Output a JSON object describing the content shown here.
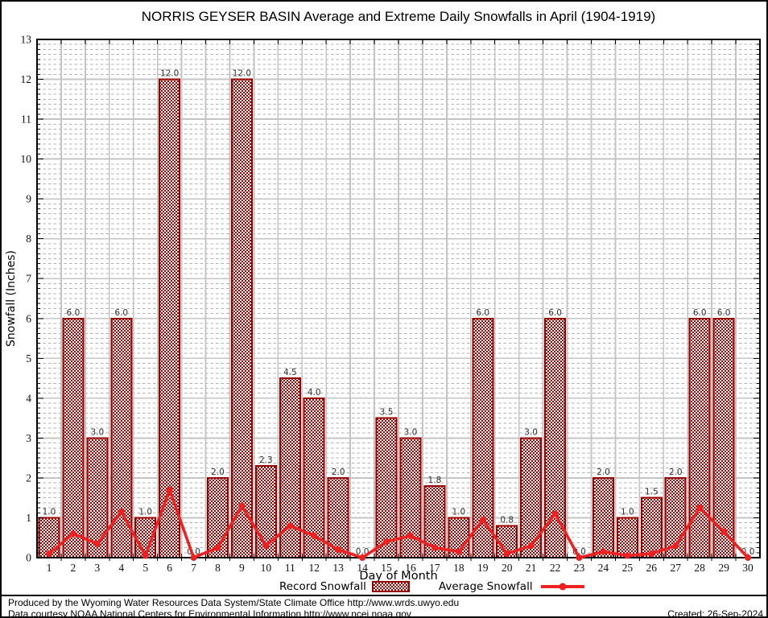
{
  "title": "NORRIS GEYSER BASIN Average and Extreme Daily Snowfalls in April (1904-1919)",
  "axes": {
    "x_title": "Day of Month",
    "y_title": "Snowfall (Inches)",
    "y_ticks": [
      0,
      1,
      2,
      3,
      4,
      5,
      6,
      7,
      8,
      9,
      10,
      11,
      12,
      13
    ]
  },
  "legend": {
    "record_label": "Record Snowfall",
    "average_label": "Average Snowfall"
  },
  "footer": {
    "line1": "Produced by the Wyoming Water Resources Data System/State Climate Office http://www.wrds.uwyo.edu",
    "line2": "Data courtesy NOAA National Centers for Environmental Information http://www.ncei.noaa.gov",
    "created": "Created: 26-Sep-2024"
  },
  "colors": {
    "bar_border": "#990000",
    "bar_fill": "#990000",
    "line": "#ee2020",
    "grid_major": "#c4c4c4",
    "grid_minor": "#b0b0b0",
    "value_label": "#333333",
    "tick_label": "#111111",
    "axis": "#000000"
  },
  "chart_data": {
    "type": "bar",
    "title": "NORRIS GEYSER BASIN Average and Extreme Daily Snowfalls in April (1904-1919)",
    "xlabel": "Day of Month",
    "ylabel": "Snowfall (Inches)",
    "ylim": [
      0,
      13
    ],
    "grid": true,
    "legend_position": "bottom",
    "x": [
      1,
      2,
      3,
      4,
      5,
      6,
      7,
      8,
      9,
      10,
      11,
      12,
      13,
      14,
      15,
      16,
      17,
      18,
      19,
      20,
      21,
      22,
      23,
      24,
      25,
      26,
      27,
      28,
      29,
      30
    ],
    "series": [
      {
        "name": "Record Snowfall",
        "type": "bar",
        "values": [
          1.0,
          6.0,
          3.0,
          6.0,
          1.0,
          12.0,
          0.0,
          2.0,
          12.0,
          2.3,
          4.5,
          4.0,
          2.0,
          0.0,
          3.5,
          3.0,
          1.8,
          1.0,
          6.0,
          0.8,
          3.0,
          6.0,
          0.0,
          2.0,
          1.0,
          1.5,
          2.0,
          6.0,
          6.0,
          0.0
        ],
        "labels": [
          "1.0",
          "6.0",
          "3.0",
          "6.0",
          "1.0",
          "12.0",
          "0.0",
          "2.0",
          "12.0",
          "2.3",
          "4.5",
          "4.0",
          "2.0",
          "0.0",
          "3.5",
          "3.0",
          "1.8",
          "1.0",
          "6.0",
          "0.8",
          "3.0",
          "6.0",
          "0.0",
          "2.0",
          "1.0",
          "1.5",
          "2.0",
          "6.0",
          "6.0",
          "0.0"
        ]
      },
      {
        "name": "Average Snowfall",
        "type": "line",
        "values": [
          0.1,
          0.6,
          0.35,
          1.15,
          0.05,
          1.7,
          0.0,
          0.25,
          1.3,
          0.3,
          0.8,
          0.55,
          0.2,
          0.0,
          0.4,
          0.55,
          0.25,
          0.15,
          0.95,
          0.1,
          0.3,
          1.1,
          0.0,
          0.15,
          0.05,
          0.1,
          0.3,
          1.25,
          0.65,
          0.0
        ]
      }
    ]
  }
}
